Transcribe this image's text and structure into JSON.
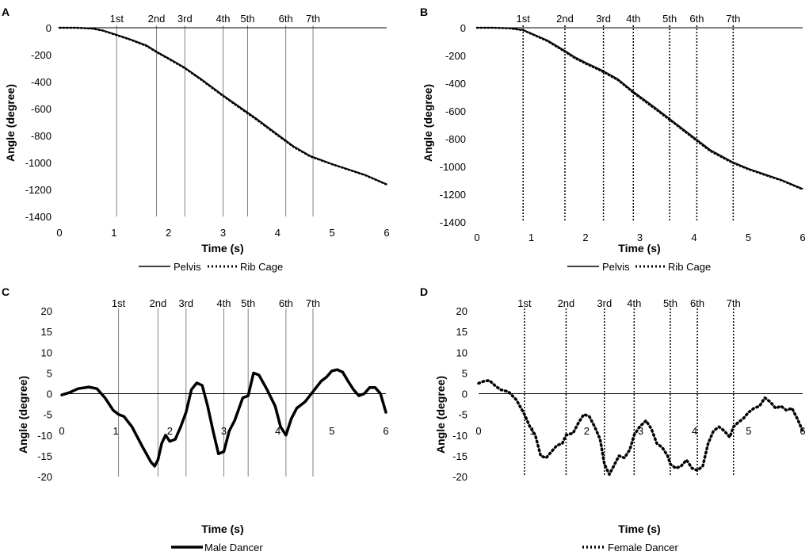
{
  "figure": {
    "colors": {
      "series": "#000000",
      "axis": "#000000",
      "event_line": "#808080",
      "event_line_dotted": "#000000",
      "background": "#ffffff"
    }
  },
  "chart_data": [
    {
      "panel": "A",
      "type": "line",
      "xlabel": "Time (s)",
      "ylabel": "Angle (degree)",
      "xlim": [
        0,
        6
      ],
      "ylim": [
        -1400,
        0
      ],
      "xticks": [
        0,
        1,
        2,
        3,
        4,
        5,
        6
      ],
      "yticks": [
        0,
        -200,
        -400,
        -600,
        -800,
        -1000,
        -1200,
        -1400
      ],
      "events": [
        {
          "label": "1st",
          "t": 1.05
        },
        {
          "label": "2nd",
          "t": 1.78
        },
        {
          "label": "3rd",
          "t": 2.3
        },
        {
          "label": "4th",
          "t": 3.0
        },
        {
          "label": "5th",
          "t": 3.45
        },
        {
          "label": "6th",
          "t": 4.15
        },
        {
          "label": "7th",
          "t": 4.65
        }
      ],
      "event_style": "solid",
      "legend": [
        "Pelvis",
        "Rib Cage"
      ],
      "series": [
        {
          "name": "Pelvis",
          "style": "solid",
          "x": [
            0,
            0.3,
            0.6,
            0.8,
            1.0,
            1.3,
            1.6,
            1.8,
            2.0,
            2.3,
            2.6,
            3.0,
            3.3,
            3.6,
            4.0,
            4.3,
            4.6,
            5.0,
            5.3,
            5.6,
            6.0
          ],
          "y": [
            0,
            0,
            -5,
            -20,
            -45,
            -85,
            -130,
            -180,
            -225,
            -295,
            -380,
            -500,
            -585,
            -670,
            -790,
            -880,
            -950,
            -1010,
            -1050,
            -1090,
            -1160
          ]
        },
        {
          "name": "Rib Cage",
          "style": "dotted",
          "x": [
            0,
            0.3,
            0.6,
            0.8,
            1.0,
            1.3,
            1.6,
            1.8,
            2.0,
            2.3,
            2.6,
            3.0,
            3.3,
            3.6,
            4.0,
            4.3,
            4.6,
            5.0,
            5.3,
            5.6,
            6.0
          ],
          "y": [
            0,
            0,
            -6,
            -22,
            -48,
            -88,
            -135,
            -185,
            -230,
            -300,
            -386,
            -506,
            -592,
            -677,
            -797,
            -886,
            -955,
            -1013,
            -1053,
            -1093,
            -1163
          ]
        }
      ]
    },
    {
      "panel": "B",
      "type": "line",
      "xlabel": "Time (s)",
      "ylabel": "Angle (degree)",
      "xlim": [
        0,
        6
      ],
      "ylim": [
        -1400,
        0
      ],
      "xticks": [
        0,
        1,
        2,
        3,
        4,
        5,
        6
      ],
      "yticks": [
        0,
        -200,
        -400,
        -600,
        -800,
        -1000,
        -1200,
        -1400
      ],
      "events": [
        {
          "label": "1st",
          "t": 0.85
        },
        {
          "label": "2nd",
          "t": 1.62
        },
        {
          "label": "3rd",
          "t": 2.33
        },
        {
          "label": "4th",
          "t": 2.88
        },
        {
          "label": "5th",
          "t": 3.55
        },
        {
          "label": "6th",
          "t": 4.05
        },
        {
          "label": "7th",
          "t": 4.72
        }
      ],
      "event_style": "dotted",
      "legend": [
        "Pelvis",
        "Rib Cage"
      ],
      "series": [
        {
          "name": "Pelvis",
          "style": "solid",
          "x": [
            0,
            0.3,
            0.6,
            0.85,
            1.0,
            1.3,
            1.6,
            1.8,
            2.0,
            2.3,
            2.6,
            2.9,
            3.3,
            3.6,
            4.0,
            4.3,
            4.7,
            5.0,
            5.3,
            5.6,
            6.0
          ],
          "y": [
            0,
            0,
            -3,
            -15,
            -40,
            -90,
            -160,
            -210,
            -250,
            -305,
            -370,
            -465,
            -580,
            -670,
            -790,
            -880,
            -965,
            -1015,
            -1055,
            -1095,
            -1160
          ]
        },
        {
          "name": "Rib Cage",
          "style": "dotted",
          "x": [
            0,
            0.3,
            0.6,
            0.85,
            1.0,
            1.3,
            1.6,
            1.8,
            2.0,
            2.3,
            2.6,
            2.9,
            3.3,
            3.6,
            4.0,
            4.3,
            4.7,
            5.0,
            5.3,
            5.6,
            6.0
          ],
          "y": [
            0,
            0,
            -4,
            -18,
            -44,
            -96,
            -168,
            -218,
            -258,
            -313,
            -378,
            -474,
            -590,
            -679,
            -800,
            -889,
            -972,
            -1020,
            -1060,
            -1099,
            -1164
          ]
        }
      ]
    },
    {
      "panel": "C",
      "type": "line",
      "xlabel": "Time (s)",
      "ylabel": "Angle (degree)",
      "xlim": [
        0,
        6
      ],
      "ylim": [
        -20,
        20
      ],
      "xticks": [
        0,
        1,
        2,
        3,
        4,
        5,
        6
      ],
      "yticks": [
        20,
        15,
        10,
        5,
        0,
        -5,
        -10,
        -15,
        -20
      ],
      "events": [
        {
          "label": "1st",
          "t": 1.05
        },
        {
          "label": "2nd",
          "t": 1.78
        },
        {
          "label": "3rd",
          "t": 2.3
        },
        {
          "label": "4th",
          "t": 3.0
        },
        {
          "label": "5th",
          "t": 3.45
        },
        {
          "label": "6th",
          "t": 4.15
        },
        {
          "label": "7th",
          "t": 4.65
        }
      ],
      "event_style": "solid",
      "legend": [
        "Male Dancer"
      ],
      "series": [
        {
          "name": "Male Dancer",
          "style": "thick",
          "x": [
            0,
            0.15,
            0.3,
            0.5,
            0.65,
            0.8,
            0.95,
            1.05,
            1.15,
            1.3,
            1.5,
            1.65,
            1.72,
            1.78,
            1.85,
            1.92,
            2.0,
            2.1,
            2.2,
            2.3,
            2.4,
            2.5,
            2.6,
            2.7,
            2.8,
            2.9,
            3.0,
            3.1,
            3.2,
            3.35,
            3.45,
            3.55,
            3.65,
            3.8,
            3.95,
            4.05,
            4.15,
            4.25,
            4.35,
            4.5,
            4.65,
            4.8,
            4.9,
            5.0,
            5.1,
            5.2,
            5.3,
            5.4,
            5.5,
            5.6,
            5.7,
            5.8,
            5.9,
            6.0
          ],
          "y": [
            -0.3,
            0.3,
            1.2,
            1.6,
            1.2,
            -1.0,
            -4.0,
            -5.0,
            -5.5,
            -8.0,
            -13.0,
            -16.5,
            -17.5,
            -16.0,
            -12.0,
            -10.0,
            -11.5,
            -11.0,
            -8.0,
            -4.5,
            1.0,
            2.6,
            2.0,
            -3.0,
            -9.0,
            -14.5,
            -14.0,
            -9.0,
            -6.5,
            -1.0,
            -0.5,
            5.0,
            4.5,
            1.0,
            -3.0,
            -8.0,
            -10.0,
            -6.0,
            -3.5,
            -2.0,
            0.5,
            3.0,
            4.0,
            5.5,
            5.8,
            5.2,
            3.0,
            1.0,
            -0.5,
            0.0,
            1.5,
            1.5,
            0.0,
            -4.5
          ]
        }
      ]
    },
    {
      "panel": "D",
      "type": "line",
      "xlabel": "Time (s)",
      "ylabel": "Angle (degree)",
      "xlim": [
        0,
        6
      ],
      "ylim": [
        -20,
        20
      ],
      "xticks": [
        0,
        1,
        2,
        3,
        4,
        5,
        6
      ],
      "yticks": [
        20,
        15,
        10,
        5,
        0,
        -5,
        -10,
        -15,
        -20
      ],
      "events": [
        {
          "label": "1st",
          "t": 0.85
        },
        {
          "label": "2nd",
          "t": 1.62
        },
        {
          "label": "3rd",
          "t": 2.33
        },
        {
          "label": "4th",
          "t": 2.88
        },
        {
          "label": "5th",
          "t": 3.55
        },
        {
          "label": "6th",
          "t": 4.05
        },
        {
          "label": "7th",
          "t": 4.72
        }
      ],
      "event_style": "dotted",
      "legend": [
        "Female Dancer"
      ],
      "series": [
        {
          "name": "Female Dancer",
          "style": "dotted-thick",
          "x": [
            0,
            0.1,
            0.2,
            0.3,
            0.4,
            0.55,
            0.7,
            0.85,
            0.95,
            1.05,
            1.15,
            1.25,
            1.35,
            1.45,
            1.55,
            1.62,
            1.75,
            1.85,
            1.95,
            2.05,
            2.15,
            2.25,
            2.33,
            2.42,
            2.52,
            2.6,
            2.7,
            2.8,
            2.88,
            2.98,
            3.1,
            3.2,
            3.3,
            3.4,
            3.5,
            3.55,
            3.65,
            3.75,
            3.85,
            3.95,
            4.05,
            4.15,
            4.25,
            4.35,
            4.45,
            4.55,
            4.65,
            4.72,
            4.8,
            4.9,
            5.0,
            5.1,
            5.2,
            5.3,
            5.4,
            5.5,
            5.6,
            5.7,
            5.8,
            5.9,
            6.0
          ],
          "y": [
            2.5,
            3.0,
            3.2,
            2.0,
            1.0,
            0.5,
            -1.5,
            -5.0,
            -8.0,
            -10.0,
            -15.0,
            -15.5,
            -14.0,
            -12.5,
            -12.0,
            -10.0,
            -9.5,
            -7.0,
            -5.0,
            -5.5,
            -8.0,
            -11.0,
            -17.0,
            -19.5,
            -17.0,
            -15.0,
            -15.5,
            -13.5,
            -10.0,
            -8.0,
            -6.5,
            -8.5,
            -12.0,
            -13.0,
            -15.0,
            -17.0,
            -18.0,
            -17.5,
            -16.0,
            -18.0,
            -18.5,
            -17.5,
            -12.0,
            -9.0,
            -8.0,
            -9.0,
            -10.5,
            -8.0,
            -7.0,
            -6.0,
            -4.5,
            -3.5,
            -3.0,
            -1.0,
            -2.0,
            -3.5,
            -3.0,
            -4.0,
            -3.5,
            -6.0,
            -9.0
          ]
        }
      ]
    }
  ]
}
